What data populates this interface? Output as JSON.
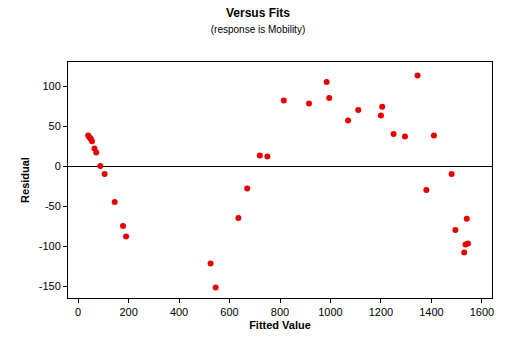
{
  "chart_data": {
    "type": "scatter",
    "title": "Versus Fits",
    "subtitle": "(response is Mobility)",
    "x_label": "Fitted Value",
    "y_label": "Residual",
    "x": [
      40,
      45,
      50,
      55,
      65,
      72,
      88,
      105,
      145,
      178,
      190,
      525,
      545,
      635,
      670,
      720,
      750,
      815,
      915,
      985,
      995,
      1070,
      1110,
      1200,
      1205,
      1250,
      1295,
      1345,
      1380,
      1410,
      1480,
      1495,
      1530,
      1535,
      1545,
      1540
    ],
    "values": [
      38,
      36,
      34,
      31,
      22,
      17,
      0,
      -10,
      -45,
      -75,
      -88,
      -122,
      -152,
      -65,
      -28,
      13,
      12,
      82,
      78,
      105,
      85,
      57,
      70,
      63,
      74,
      40,
      37,
      113,
      -30,
      38,
      -10,
      -80,
      -108,
      -98,
      -97,
      -66
    ],
    "color": "#e60000",
    "marker": "circle",
    "xlim": [
      -40,
      1640
    ],
    "xticks": [
      0,
      200,
      400,
      600,
      800,
      1000,
      1200,
      1400,
      1600
    ],
    "ylim": [
      -165,
      130
    ],
    "yticks": [
      -150,
      -100,
      -50,
      0,
      50,
      100
    ],
    "grid": false
  }
}
